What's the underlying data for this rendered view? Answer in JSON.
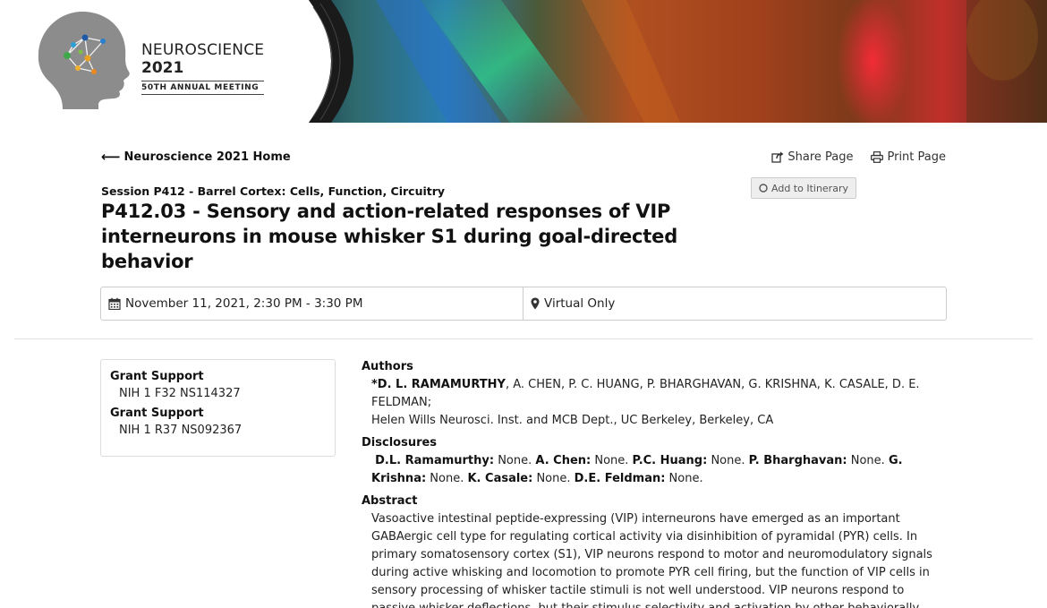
{
  "banner": {
    "logo_line1": "NEUROSCIENCE",
    "logo_line2": "2021",
    "logo_line3": "50TH ANNUAL MEETING",
    "logo_icon": "brain-head-logo-icon"
  },
  "nav": {
    "home_link": "Neuroscience 2021 Home",
    "share": "Share Page",
    "print": "Print Page",
    "itinerary": "Add to Itinerary"
  },
  "session": {
    "label": "Session P412 - Barrel Cortex: Cells, Function, Circuitry",
    "title": "P412.03 - Sensory and action-related responses of VIP interneurons in mouse whisker S1 during goal-directed behavior",
    "date_time": "November 11, 2021, 2:30 PM - 3:30 PM",
    "location": "Virtual Only"
  },
  "grant_support": [
    {
      "heading": "Grant Support",
      "value": "NIH 1 F32 NS114327"
    },
    {
      "heading": "Grant Support",
      "value": "NIH 1 R37 NS092367"
    }
  ],
  "authors": {
    "heading": "Authors",
    "first_author": "*D. L. RAMAMURTHY",
    "others": ", A. CHEN, P. C. HUANG, P. BHARGHAVAN, G. KRISHNA, K. CASALE, D. E. FELDMAN;",
    "affiliation": "Helen Wills Neurosci. Inst. and MCB Dept., UC Berkeley, Berkeley, CA"
  },
  "disclosures": {
    "heading": "Disclosures",
    "items": [
      {
        "name": "D.L. Ramamurthy:",
        "value": " None. "
      },
      {
        "name": "A. Chen:",
        "value": " None. "
      },
      {
        "name": "P.C. Huang:",
        "value": " None. "
      },
      {
        "name": "P. Bharghavan:",
        "value": " None. "
      },
      {
        "name": "G. Krishna:",
        "value": " None. "
      },
      {
        "name": "K. Casale:",
        "value": " None. "
      },
      {
        "name": "D.E. Feldman:",
        "value": " None."
      }
    ]
  },
  "abstract": {
    "heading": "Abstract",
    "text": "Vasoactive intestinal peptide-expressing (VIP) interneurons have emerged as an important GABAergic cell type for regulating cortical activity via disinhibition of pyramidal (PYR) cells. In primary somatosensory cortex (S1), VIP neurons respond to motor and neuromodulatory signals during active whisking and locomotion to promote PYR cell firing, but the function of VIP cells in sensory processing of whisker tactile stimuli is not well understood. VIP neurons respond to passive whisker deflections, but their stimulus selectivity and activation by other behaviorally relevant signals like reinforcement is"
  }
}
